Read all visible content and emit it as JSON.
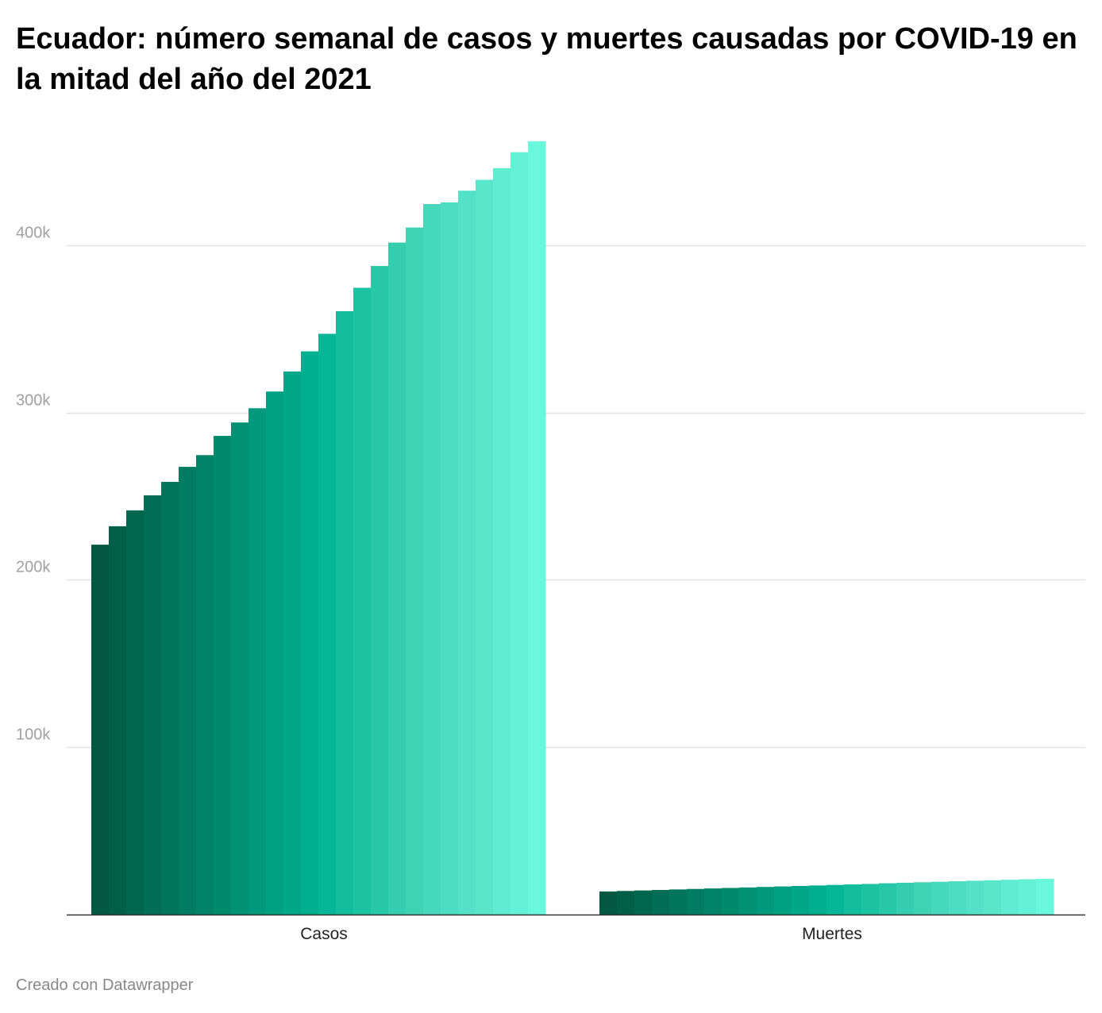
{
  "header": {
    "title": "Ecuador: número semanal de casos y muertes causadas por COVID-19 en la mitad del año del 2021"
  },
  "footer": {
    "credit": "Creado con Datawrapper"
  },
  "chart_data": {
    "type": "bar",
    "title": "Ecuador: número semanal de casos y muertes causadas por COVID-19 en la mitad del año del 2021",
    "xlabel": "",
    "ylabel": "",
    "ylim": [
      0,
      462000
    ],
    "yticks": [
      100000,
      200000,
      300000,
      400000
    ],
    "ytick_labels": [
      "100k",
      "200k",
      "300k",
      "400k"
    ],
    "grid": true,
    "legend": "none",
    "categories": [
      "Casos",
      "Muertes"
    ],
    "groups": [
      {
        "category": "Casos",
        "values": [
          221000,
          232000,
          241500,
          250500,
          258500,
          267500,
          274500,
          286000,
          294000,
          302500,
          312500,
          324500,
          336500,
          347000,
          360500,
          374500,
          387500,
          401500,
          410500,
          424500,
          425500,
          432500,
          439000,
          446000,
          455500,
          462000
        ]
      },
      {
        "category": "Muertes",
        "values": [
          13800,
          14100,
          14400,
          14700,
          15000,
          15300,
          15600,
          15900,
          16200,
          16500,
          16800,
          17100,
          17400,
          17700,
          18000,
          18300,
          18700,
          19000,
          19300,
          19600,
          19900,
          20200,
          20500,
          20800,
          21100,
          21400
        ]
      }
    ],
    "colors": [
      "#01573f",
      "#006b53",
      "#007c62",
      "#008e6f",
      "#00a083",
      "#00b393",
      "#1cc3a0",
      "#3ad0b0",
      "#4dddc0",
      "#5ce9cd",
      "#6af8dc"
    ]
  }
}
